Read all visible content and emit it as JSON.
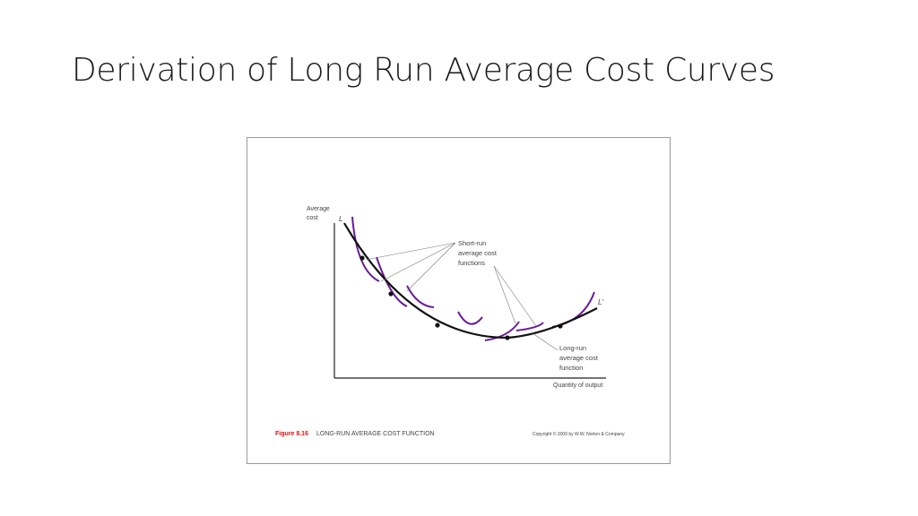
{
  "slide": {
    "title": "Derivation of Long Run Average Cost Curves"
  },
  "figure": {
    "y_axis_label_line1": "Average",
    "y_axis_label_line2": "cost",
    "x_axis_label": "Quantity of output",
    "curve_start_label": "L",
    "curve_end_label": "L'",
    "short_run_label_line1": "Short-run",
    "short_run_label_line2": "average cost",
    "short_run_label_line3": "functions",
    "long_run_label_line1": "Long-run",
    "long_run_label_line2": "average cost",
    "long_run_label_line3": "function",
    "caption_number": "Figure 8.16",
    "caption_text": "LONG-RUN AVERAGE COST FUNCTION",
    "copyright": "Copyright © 2000 by W.W. Norton & Company",
    "colors": {
      "long_run_curve": "#111111",
      "short_run_curves": "#6a1b9a",
      "caption_number": "#e01010",
      "axes": "#222222"
    }
  }
}
